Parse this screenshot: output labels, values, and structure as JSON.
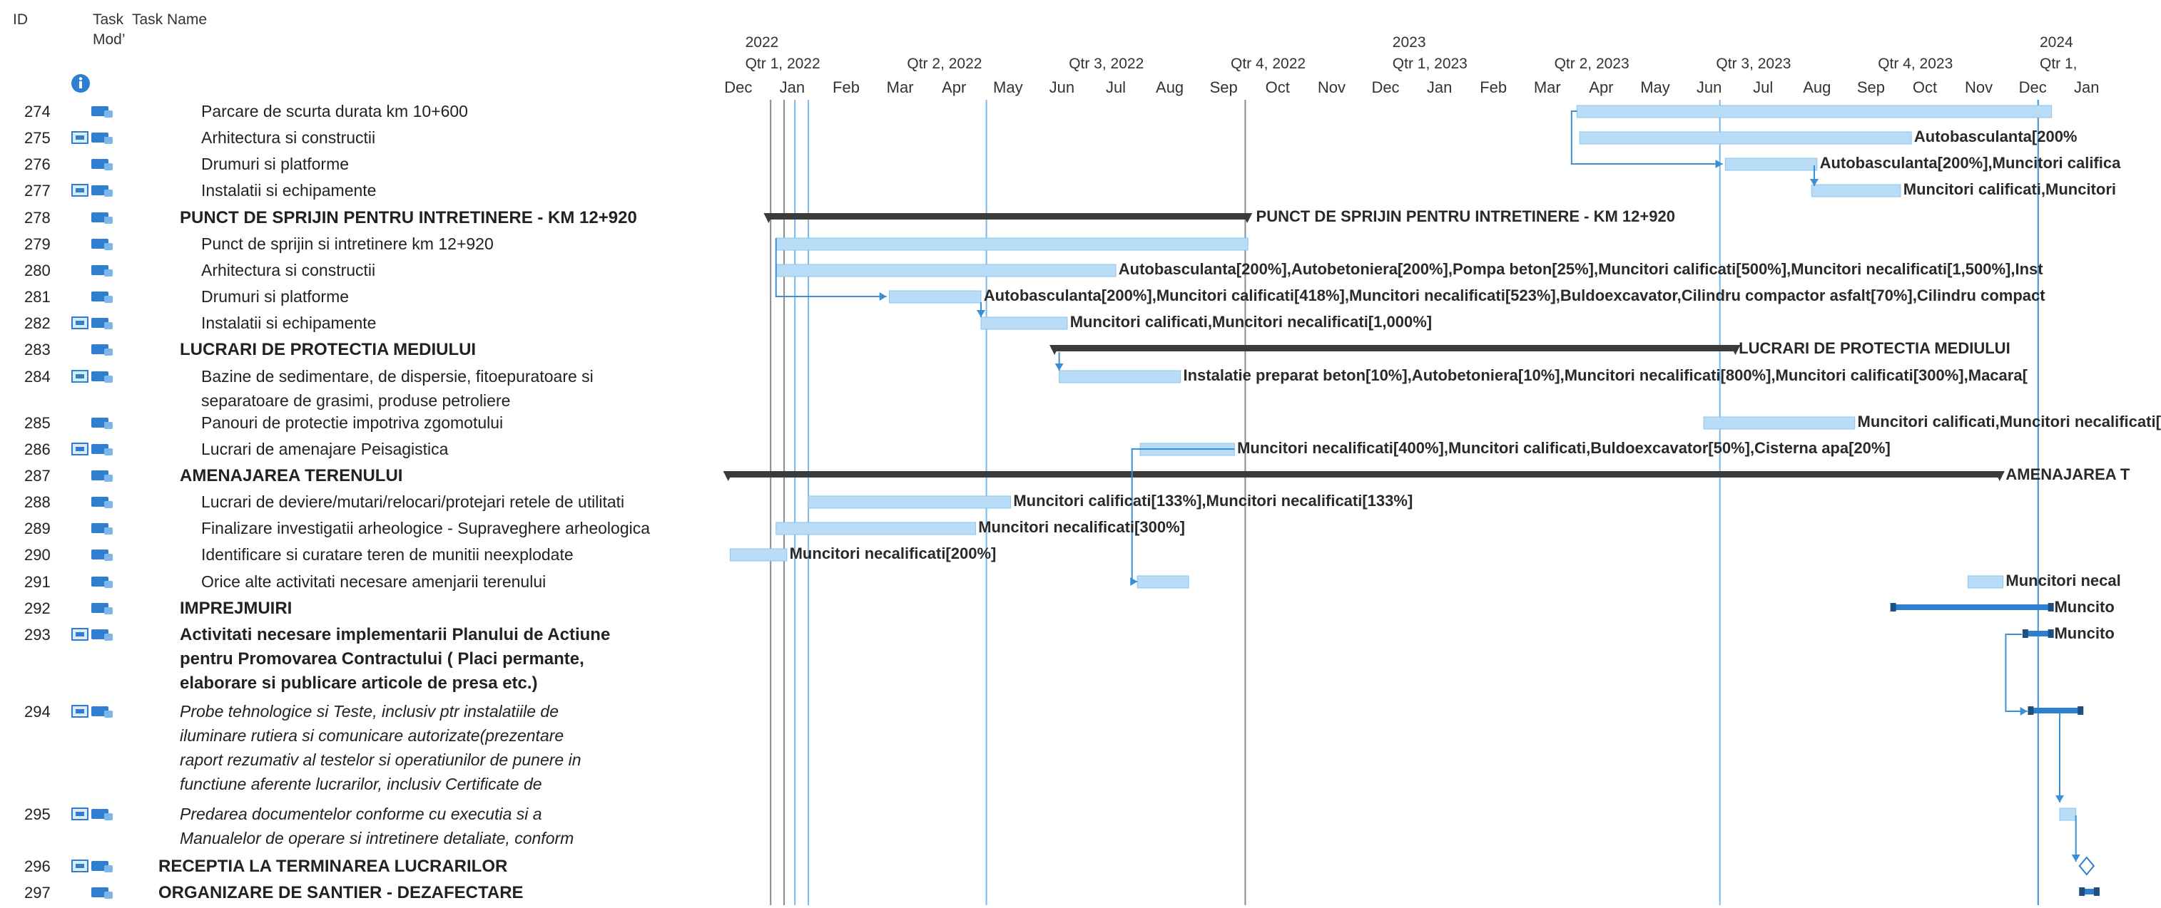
{
  "header": {
    "col_id": "ID",
    "col_mode_line1": "Task",
    "col_mode_line2": "Mod’",
    "col_name": "Task Name",
    "info_icon": "info-icon"
  },
  "timeline": {
    "years": [
      {
        "label": "2022",
        "month_index": 1
      },
      {
        "label": "2023",
        "month_index": 13
      },
      {
        "label": "2024",
        "month_index": 25
      }
    ],
    "quarters": [
      {
        "label": "Qtr 1, 2022",
        "month_index": 1
      },
      {
        "label": "Qtr 2, 2022",
        "month_index": 4
      },
      {
        "label": "Qtr 3, 2022",
        "month_index": 7
      },
      {
        "label": "Qtr 4, 2022",
        "month_index": 10
      },
      {
        "label": "Qtr 1, 2023",
        "month_index": 13
      },
      {
        "label": "Qtr 2, 2023",
        "month_index": 16
      },
      {
        "label": "Qtr 3, 2023",
        "month_index": 19
      },
      {
        "label": "Qtr 4, 2023",
        "month_index": 22
      },
      {
        "label": "Qtr 1,",
        "month_index": 25
      }
    ],
    "months": [
      "Dec",
      "Jan",
      "Feb",
      "Mar",
      "Apr",
      "May",
      "Jun",
      "Jul",
      "Aug",
      "Sep",
      "Oct",
      "Nov",
      "Dec",
      "Jan",
      "Feb",
      "Mar",
      "Apr",
      "May",
      "Jun",
      "Jul",
      "Aug",
      "Sep",
      "Oct",
      "Nov",
      "Dec",
      "Jan"
    ]
  },
  "tasks": [
    {
      "id": "274",
      "name": "Parcare de scurta durata km 10+600",
      "style": "normal",
      "indent": 3,
      "cal": false
    },
    {
      "id": "275",
      "name": "Arhitectura si constructii",
      "style": "normal",
      "indent": 3,
      "cal": true
    },
    {
      "id": "276",
      "name": "Drumuri si platforme",
      "style": "normal",
      "indent": 3,
      "cal": false
    },
    {
      "id": "277",
      "name": "Instalatii si echipamente",
      "style": "normal",
      "indent": 3,
      "cal": true
    },
    {
      "id": "278",
      "name": "PUNCT DE SPRIJIN PENTRU INTRETINERE  - KM 12+920",
      "style": "summary",
      "indent": 2,
      "cal": false
    },
    {
      "id": "279",
      "name": "Punct de sprijin si intretinere km 12+920",
      "style": "normal",
      "indent": 3,
      "cal": false
    },
    {
      "id": "280",
      "name": "Arhitectura si constructii",
      "style": "normal",
      "indent": 3,
      "cal": false
    },
    {
      "id": "281",
      "name": "Drumuri si platforme",
      "style": "normal",
      "indent": 3,
      "cal": false
    },
    {
      "id": "282",
      "name": "Instalatii si echipamente",
      "style": "normal",
      "indent": 3,
      "cal": true
    },
    {
      "id": "283",
      "name": "LUCRARI DE PROTECTIA MEDIULUI",
      "style": "summary",
      "indent": 2,
      "cal": false
    },
    {
      "id": "284",
      "name": "Bazine de sedimentare, de dispersie, fitoepuratoare si",
      "name2": "separatoare de grasimi, produse petroliere",
      "style": "normal",
      "indent": 3,
      "cal": true
    },
    {
      "id": "285",
      "name": "Panouri de protectie impotriva zgomotului",
      "style": "normal",
      "indent": 3,
      "cal": false
    },
    {
      "id": "286",
      "name": "Lucrari de amenajare Peisagistica",
      "style": "normal",
      "indent": 3,
      "cal": true
    },
    {
      "id": "287",
      "name": "AMENAJAREA TERENULUI",
      "style": "summary",
      "indent": 2,
      "cal": false
    },
    {
      "id": "288",
      "name": "Lucrari de deviere/mutari/relocari/protejari retele de utilitati",
      "style": "normal",
      "indent": 3,
      "cal": false
    },
    {
      "id": "289",
      "name": "Finalizare investigatii arheologice - Supraveghere arheologica",
      "style": "normal",
      "indent": 3,
      "cal": false
    },
    {
      "id": "290",
      "name": "Identificare si curatare teren de munitii neexplodate",
      "style": "normal",
      "indent": 3,
      "cal": false
    },
    {
      "id": "291",
      "name": "Orice alte activitati necesare amenjarii terenului",
      "style": "normal",
      "indent": 3,
      "cal": false
    },
    {
      "id": "292",
      "name": "IMPREJMUIRI",
      "style": "summary",
      "indent": 2,
      "cal": false
    },
    {
      "id": "293",
      "name": "Activitati necesare implementarii Planului de Actiune",
      "name2": "pentru Promovarea Contractului ( Placi permante,",
      "name3": "elaborare si publicare articole de presa etc.)",
      "style": "summary",
      "indent": 2,
      "cal": true
    },
    {
      "id": "294",
      "name": "Probe tehnologice si Teste, inclusiv  ptr instalatiile de",
      "name2": "iluminare rutiera si comunicare autorizate(prezentare",
      "name3": "raport rezumativ al testelor si operatiunilor de punere in",
      "name4": "functiune aferente lucrarilor, inclusiv Certificate de",
      "style": "italic",
      "indent": 2,
      "cal": true
    },
    {
      "id": "295",
      "name": "Predarea documentelor conforme cu executia si a",
      "name2": "Manualelor de operare si intretinere detaliate, conform",
      "style": "italic",
      "indent": 2,
      "cal": true
    },
    {
      "id": "296",
      "name": "RECEPTIA LA TERMINAREA LUCRARILOR",
      "style": "summary",
      "indent": 1,
      "cal": true
    },
    {
      "id": "297",
      "name": "ORGANIZARE DE SANTIER - DEZAFECTARE",
      "style": "summary",
      "indent": 1,
      "cal": false
    }
  ],
  "bar_labels": [
    {
      "row": "275",
      "text": "Autobasculanta[200%"
    },
    {
      "row": "276",
      "text": "Autobasculanta[200%],Muncitori califica"
    },
    {
      "row": "277",
      "text": "Muncitori calificati,Muncitori"
    },
    {
      "row": "278",
      "text": "PUNCT DE SPRIJIN PENTRU INTRETINERE  - KM 12+920"
    },
    {
      "row": "280",
      "text": "Autobasculanta[200%],Autobetoniera[200%],Pompa beton[25%],Muncitori calificati[500%],Muncitori necalificati[1,500%],Inst"
    },
    {
      "row": "281",
      "text": "Autobasculanta[200%],Muncitori calificati[418%],Muncitori necalificati[523%],Buldoexcavator,Cilindru compactor asfalt[70%],Cilindru compact"
    },
    {
      "row": "282",
      "text": "Muncitori calificati,Muncitori necalificati[1,000%]"
    },
    {
      "row": "283",
      "text": "LUCRARI DE PROTECTIA MEDIULUI"
    },
    {
      "row": "284",
      "text": "Instalatie preparat beton[10%],Autobetoniera[10%],Muncitori necalificati[800%],Muncitori calificati[300%],Macara["
    },
    {
      "row": "285",
      "text": "Muncitori calificati,Muncitori necalificati["
    },
    {
      "row": "286",
      "text": "Muncitori necalificati[400%],Muncitori calificati,Buldoexcavator[50%],Cisterna apa[20%]"
    },
    {
      "row": "287",
      "text": "AMENAJAREA T"
    },
    {
      "row": "288",
      "text": "Muncitori calificati[133%],Muncitori necalificati[133%]"
    },
    {
      "row": "289",
      "text": "Muncitori necalificati[300%]"
    },
    {
      "row": "290",
      "text": "Muncitori necalificati[200%]"
    },
    {
      "row": "291",
      "text": "Muncitori necal"
    },
    {
      "row": "292",
      "text": "Muncito"
    },
    {
      "row": "293",
      "text": "Muncito"
    }
  ],
  "gantt_bars": [
    {
      "row": "274",
      "type": "task",
      "start": 16.05,
      "end": 24.85
    },
    {
      "row": "275",
      "type": "task",
      "start": 16.1,
      "end": 22.25
    },
    {
      "row": "276",
      "type": "task",
      "start": 18.8,
      "end": 20.5
    },
    {
      "row": "277",
      "type": "task",
      "start": 20.4,
      "end": 22.05
    },
    {
      "row": "278",
      "type": "summary",
      "start": 1.05,
      "end": 9.95
    },
    {
      "row": "279",
      "type": "task",
      "start": 1.2,
      "end": 9.95
    },
    {
      "row": "280",
      "type": "task",
      "start": 1.2,
      "end": 7.5
    },
    {
      "row": "281",
      "type": "task",
      "start": 3.3,
      "end": 5.0
    },
    {
      "row": "282",
      "type": "task",
      "start": 5.0,
      "end": 6.6
    },
    {
      "row": "283",
      "type": "summary",
      "start": 6.35,
      "end": 19.0
    },
    {
      "row": "284",
      "type": "task",
      "start": 6.45,
      "end": 8.7
    },
    {
      "row": "285",
      "type": "task",
      "start": 18.4,
      "end": 21.2
    },
    {
      "row": "286",
      "type": "task",
      "start": 7.95,
      "end": 9.7
    },
    {
      "row": "287",
      "type": "summary",
      "start": 0.3,
      "end": 23.9
    },
    {
      "row": "288",
      "type": "task",
      "start": 1.8,
      "end": 5.55
    },
    {
      "row": "289",
      "type": "task",
      "start": 1.2,
      "end": 4.9
    },
    {
      "row": "290",
      "type": "task",
      "start": 0.35,
      "end": 1.4
    },
    {
      "row": "291",
      "type": "task",
      "start": 7.9,
      "end": 8.85
    },
    {
      "row": "291",
      "type": "task",
      "start": 23.3,
      "end": 23.95
    },
    {
      "row": "292",
      "type": "critical",
      "start": 21.9,
      "end": 24.85
    },
    {
      "row": "293",
      "type": "critical",
      "start": 24.35,
      "end": 24.85
    },
    {
      "row": "294",
      "type": "critical",
      "start": 24.45,
      "end": 25.4
    },
    {
      "row": "295",
      "type": "task",
      "start": 25.0,
      "end": 25.3
    },
    {
      "row": "296",
      "type": "milestone",
      "start": 25.5,
      "end": 25.5
    },
    {
      "row": "297",
      "type": "critical",
      "start": 25.4,
      "end": 25.7
    }
  ],
  "colors": {
    "task_fill": "#b9ddf6",
    "task_border": "#8cc6ee",
    "summary": "#3b3b3b",
    "critical": "#2f7fd1",
    "link": "#3a8fd6",
    "today_line": "#7ab8ea",
    "status_line": "#8c8c8c"
  }
}
